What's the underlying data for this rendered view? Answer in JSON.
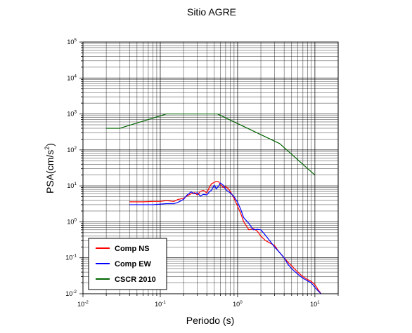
{
  "chart_data": {
    "type": "line",
    "title": "Sitio AGRE",
    "xlabel": "Periodo (s)",
    "ylabel": "PSA(cm/s²)",
    "xscale": "log",
    "yscale": "log",
    "xlim": [
      0.01,
      20
    ],
    "ylim": [
      0.01,
      100000
    ],
    "grid": true,
    "legend_position": "bottom-left",
    "x_ticks": [
      {
        "base": "10",
        "exp": "-2",
        "value": 0.01
      },
      {
        "base": "10",
        "exp": "-1",
        "value": 0.1
      },
      {
        "base": "10",
        "exp": "0",
        "value": 1
      },
      {
        "base": "10",
        "exp": "1",
        "value": 10
      }
    ],
    "y_ticks": [
      {
        "base": "10",
        "exp": "-2",
        "value": 0.01
      },
      {
        "base": "10",
        "exp": "-1",
        "value": 0.1
      },
      {
        "base": "10",
        "exp": "0",
        "value": 1
      },
      {
        "base": "10",
        "exp": "1",
        "value": 10
      },
      {
        "base": "10",
        "exp": "2",
        "value": 100
      },
      {
        "base": "10",
        "exp": "3",
        "value": 1000
      },
      {
        "base": "10",
        "exp": "4",
        "value": 10000
      },
      {
        "base": "10",
        "exp": "5",
        "value": 100000
      }
    ],
    "series": [
      {
        "name": "Comp NS",
        "color": "#ff0000",
        "x": [
          0.04,
          0.06,
          0.08,
          0.1,
          0.12,
          0.15,
          0.17,
          0.2,
          0.22,
          0.25,
          0.28,
          0.3,
          0.33,
          0.36,
          0.4,
          0.43,
          0.46,
          0.5,
          0.53,
          0.57,
          0.6,
          0.65,
          0.7,
          0.75,
          0.8,
          0.9,
          1.0,
          1.1,
          1.2,
          1.4,
          1.6,
          1.8,
          2.0,
          2.3,
          2.6,
          3.0,
          3.4,
          4.0,
          4.5,
          5.0,
          6.0,
          7.0,
          8.0,
          9.0,
          10.0,
          11.0,
          12.0
        ],
        "y": [
          3.6,
          3.6,
          3.7,
          3.7,
          3.9,
          3.7,
          4.2,
          4.5,
          5.2,
          6.0,
          6.5,
          5.6,
          7.0,
          7.5,
          6.4,
          9.0,
          11.5,
          12.5,
          13.5,
          13.0,
          11.0,
          9.0,
          9.5,
          8.5,
          7.2,
          4.5,
          2.7,
          1.7,
          1.0,
          0.6,
          0.65,
          0.55,
          0.4,
          0.3,
          0.26,
          0.22,
          0.15,
          0.1,
          0.075,
          0.06,
          0.04,
          0.03,
          0.025,
          0.022,
          0.018,
          0.013,
          0.01
        ]
      },
      {
        "name": "Comp EW",
        "color": "#0000ff",
        "x": [
          0.04,
          0.06,
          0.08,
          0.1,
          0.12,
          0.15,
          0.17,
          0.2,
          0.22,
          0.25,
          0.28,
          0.3,
          0.33,
          0.36,
          0.4,
          0.43,
          0.46,
          0.5,
          0.53,
          0.57,
          0.6,
          0.65,
          0.7,
          0.75,
          0.8,
          0.9,
          1.0,
          1.1,
          1.2,
          1.4,
          1.6,
          1.8,
          2.0,
          2.3,
          2.6,
          3.0,
          3.4,
          4.0,
          4.5,
          5.0,
          6.0,
          7.0,
          8.0,
          9.0,
          10.0,
          11.0,
          12.0
        ],
        "y": [
          3.0,
          3.0,
          3.0,
          3.1,
          3.2,
          3.2,
          3.5,
          4.2,
          5.5,
          6.8,
          6.0,
          6.5,
          5.2,
          5.8,
          5.6,
          6.8,
          7.6,
          10.5,
          8.2,
          10.0,
          12.0,
          10.5,
          8.0,
          7.0,
          6.5,
          5.0,
          3.5,
          2.2,
          1.3,
          0.9,
          0.6,
          0.62,
          0.6,
          0.42,
          0.3,
          0.2,
          0.15,
          0.1,
          0.065,
          0.05,
          0.035,
          0.027,
          0.023,
          0.02,
          0.015,
          0.012,
          0.01
        ]
      },
      {
        "name": "CSCR 2010",
        "color": "#006400",
        "x": [
          0.02,
          0.03,
          0.12,
          0.55,
          3.5,
          10.0
        ],
        "y": [
          400,
          400,
          1000,
          1000,
          150,
          20
        ]
      }
    ]
  }
}
